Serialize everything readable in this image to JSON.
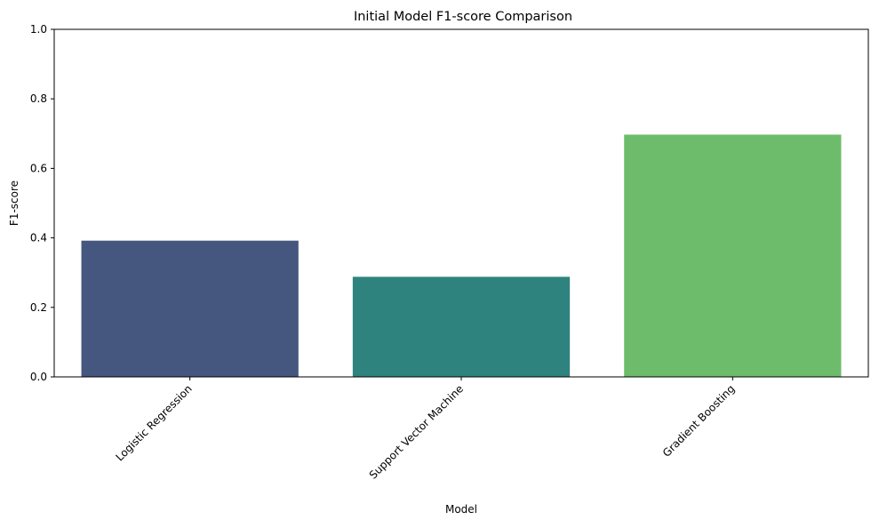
{
  "chart_data": {
    "type": "bar",
    "title": "Initial Model F1-score Comparison",
    "xlabel": "Model",
    "ylabel": "F1-score",
    "categories": [
      "Logistic Regression",
      "Support Vector Machine",
      "Gradient Boosting"
    ],
    "values": [
      0.392,
      0.288,
      0.697
    ],
    "colors": [
      "#46577f",
      "#2f837e",
      "#6dbc6c"
    ],
    "ylim": [
      0,
      1
    ],
    "yticks": [
      "0.0",
      "0.2",
      "0.4",
      "0.6",
      "0.8",
      "1.0"
    ],
    "grid": false,
    "legend": "none"
  }
}
